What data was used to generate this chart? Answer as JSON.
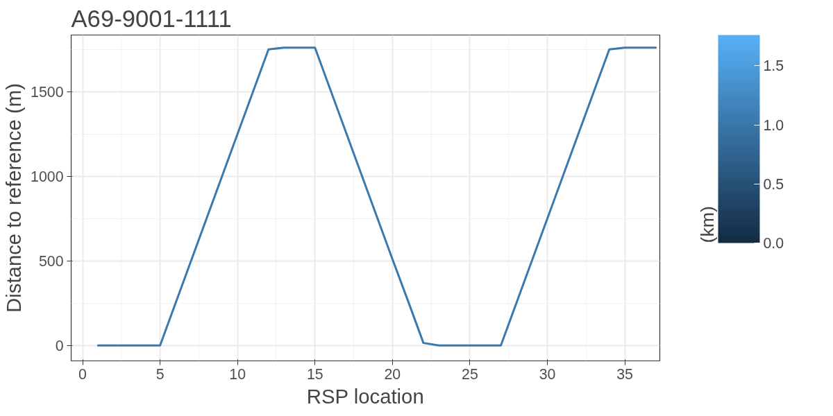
{
  "chart_data": {
    "type": "line",
    "title": "A69-9001-1111",
    "xlabel": "RSP location",
    "ylabel": "Distance to reference (m)",
    "clabel": "(km)",
    "x": [
      1,
      2,
      3,
      4,
      5,
      6,
      7,
      8,
      9,
      10,
      11,
      12,
      13,
      14,
      15,
      16,
      17,
      18,
      19,
      20,
      21,
      22,
      23,
      24,
      25,
      26,
      27,
      28,
      29,
      30,
      31,
      32,
      33,
      34,
      35,
      36,
      37
    ],
    "values": [
      0,
      0,
      0,
      0,
      0,
      250,
      500,
      750,
      1000,
      1250,
      1500,
      1750,
      1760,
      1760,
      1760,
      1510,
      1260,
      1010,
      760,
      510,
      265,
      15,
      0,
      0,
      0,
      0,
      0,
      250,
      500,
      750,
      1000,
      1250,
      1500,
      1750,
      1760,
      1760,
      1760
    ],
    "color": "#3a78ad",
    "clim": [
      0,
      1.76
    ],
    "cticks": [
      {
        "value": 0,
        "label": "0.0"
      },
      0.5,
      {
        "value": 1,
        "label": "1.0"
      },
      1.5
    ],
    "xlim": [
      -0.74,
      37.26
    ],
    "ylim": [
      -91,
      1835
    ],
    "xticks": [
      0,
      5,
      10,
      15,
      20,
      25,
      30,
      35
    ],
    "yticks": [
      0,
      500,
      1000,
      1500
    ],
    "grid": true
  }
}
